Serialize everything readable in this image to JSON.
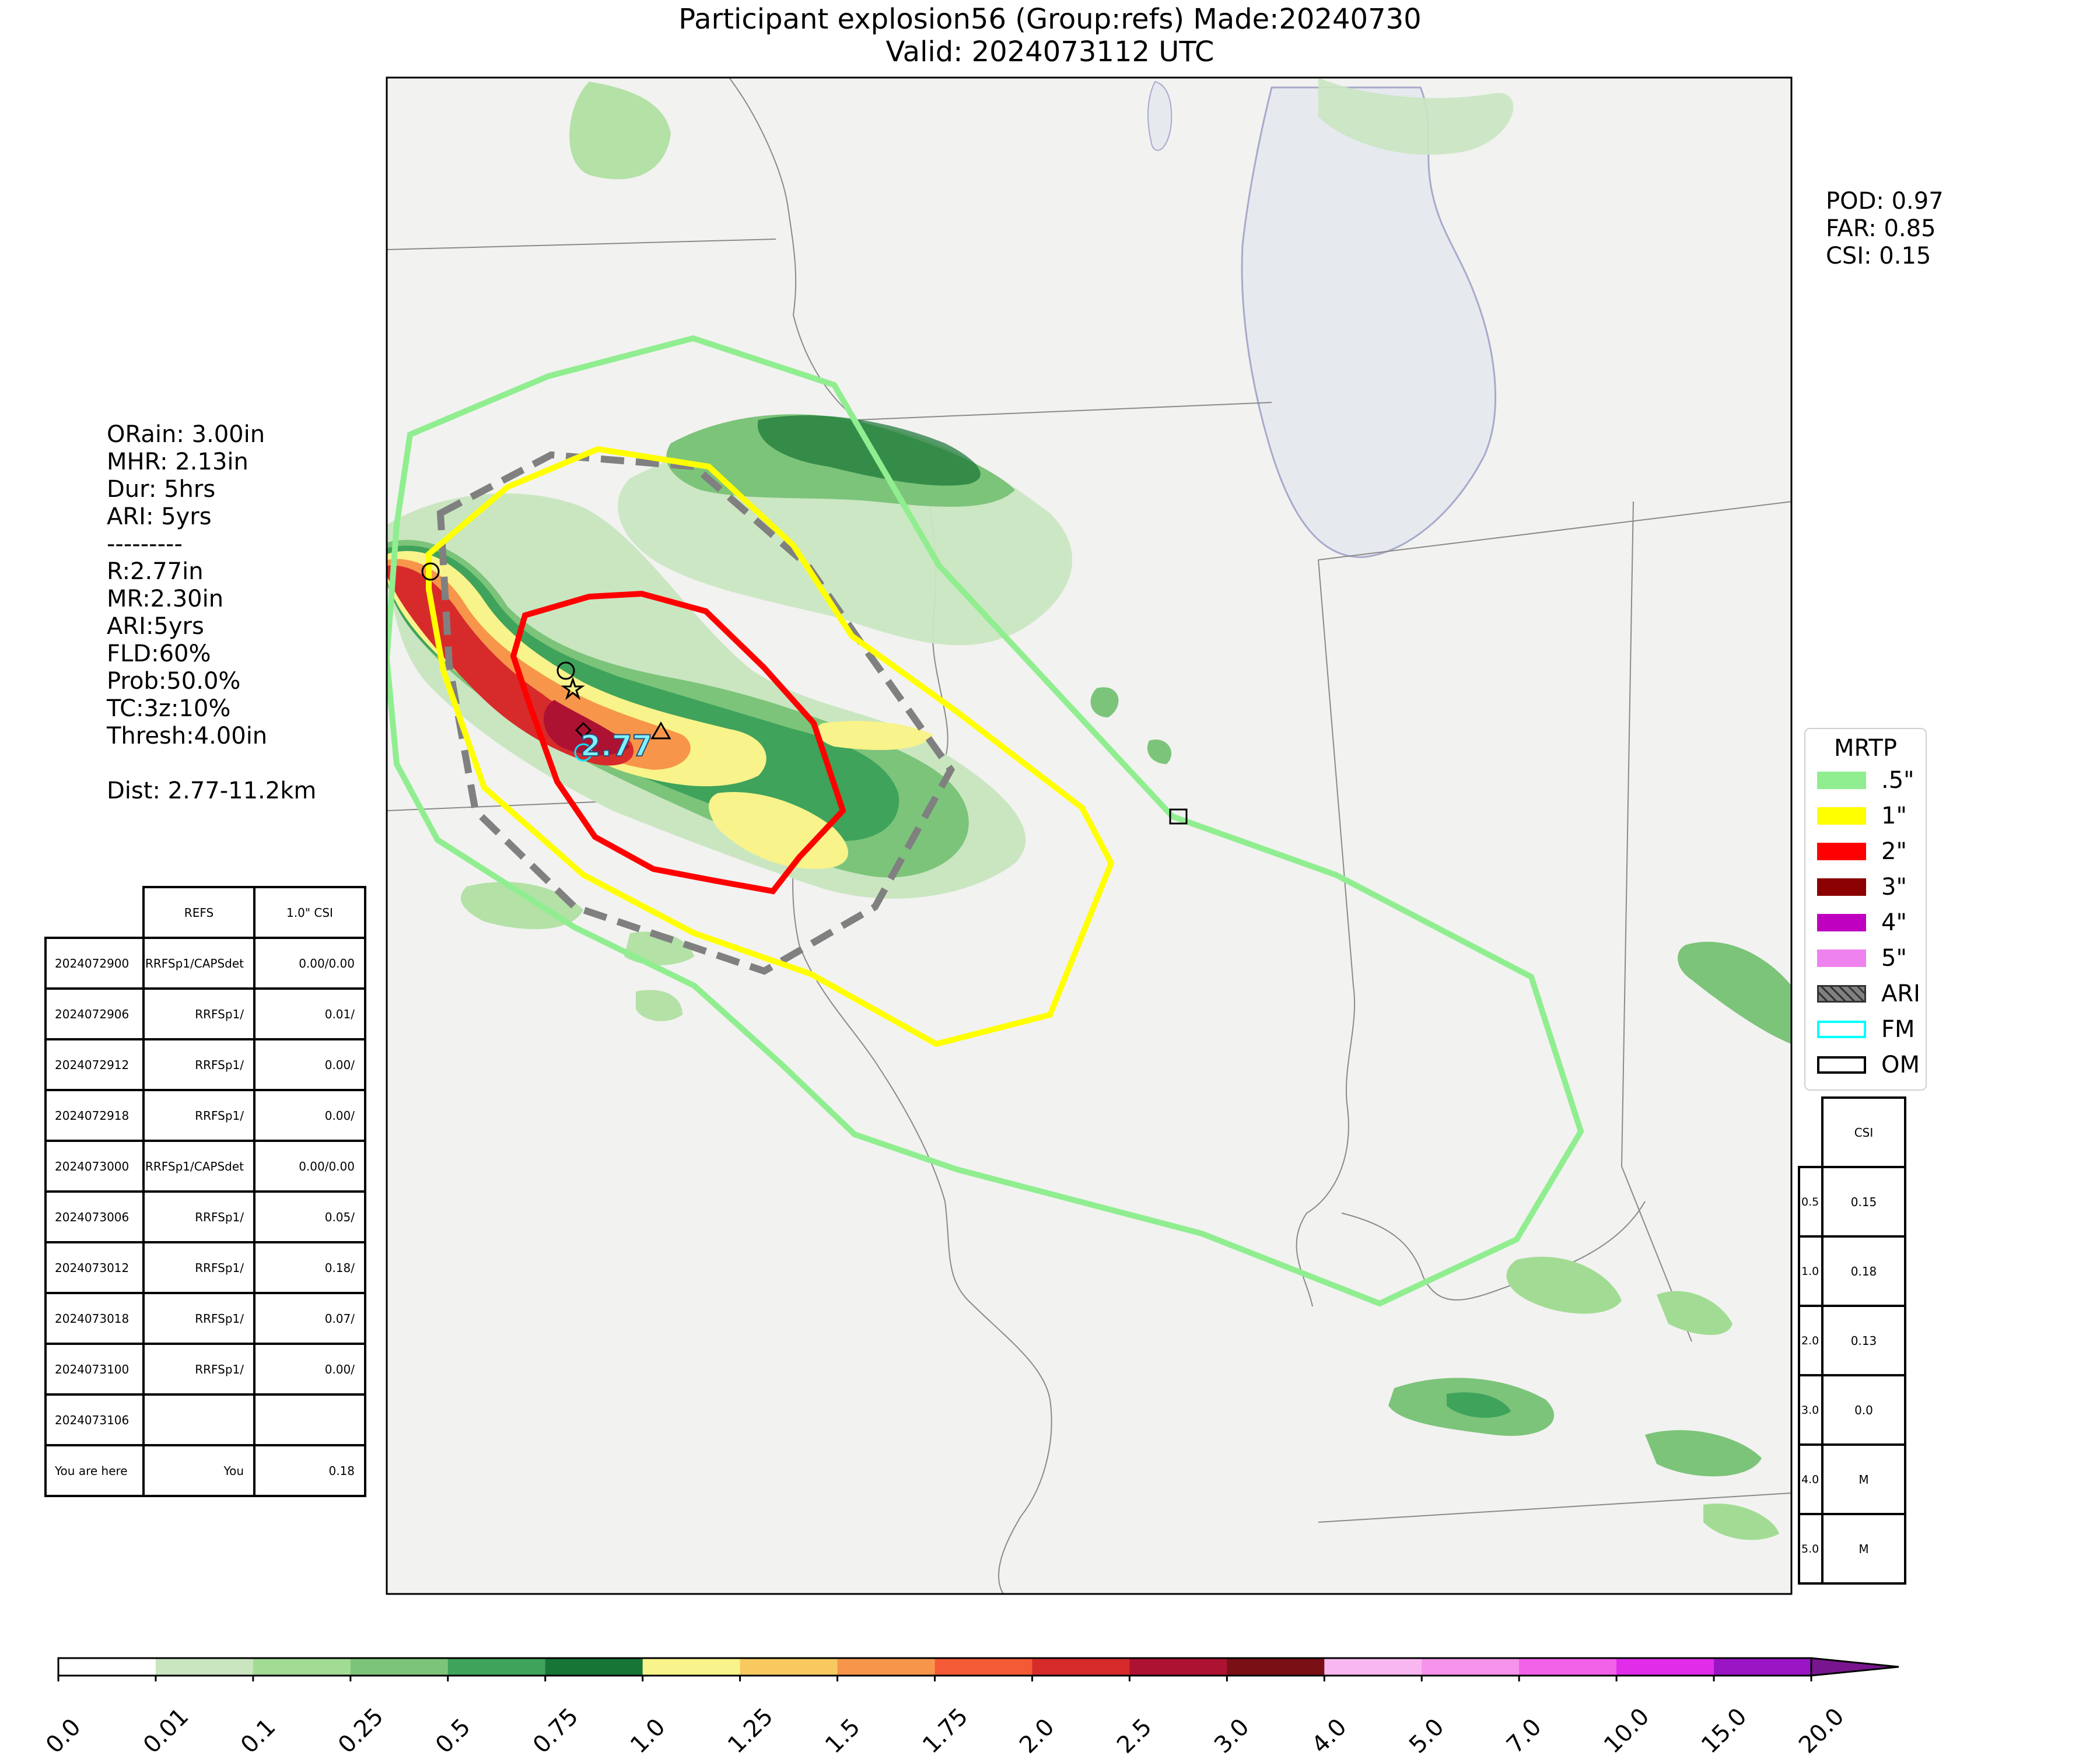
{
  "title": {
    "line1": "Participant explosion56 (Group:refs) Made:20240730",
    "line2": "Valid: 2024073112 UTC"
  },
  "scores": {
    "pod": "POD: 0.97",
    "far": "FAR: 0.85",
    "csi": "CSI: 0.15"
  },
  "info": [
    "ORain: 3.00in",
    "MHR: 2.13in",
    "Dur: 5hrs",
    "ARI: 5yrs",
    "---------",
    "R:2.77in",
    "MR:2.30in",
    "ARI:5yrs",
    "FLD:60%",
    "Prob:50.0%",
    "TC:3z:10%",
    "Thresh:4.00in",
    "",
    "Dist: 2.77-11.2km"
  ],
  "map_label": "2.77",
  "legend": {
    "title": "MRTP",
    "items": [
      {
        "label": ".5\"",
        "color": "#90ee90",
        "style": "line"
      },
      {
        "label": "1\"",
        "color": "#ffff00",
        "style": "line"
      },
      {
        "label": "2\"",
        "color": "#ff0000",
        "style": "line"
      },
      {
        "label": "3\"",
        "color": "#8b0000",
        "style": "line"
      },
      {
        "label": "4\"",
        "color": "#c000c0",
        "style": "line"
      },
      {
        "label": "5\"",
        "color": "#ee82ee",
        "style": "line"
      },
      {
        "label": "ARI",
        "color": "#808080",
        "style": "hatch"
      },
      {
        "label": "FM",
        "color": "#00ffff",
        "style": "outline"
      },
      {
        "label": "OM",
        "color": "#000000",
        "style": "outline"
      }
    ]
  },
  "runs_table": {
    "header": [
      "",
      "REFS",
      "1.0\" CSI"
    ],
    "rows": [
      [
        "2024072900",
        "RRFSp1/CAPSdet",
        "0.00/0.00"
      ],
      [
        "2024072906",
        "RRFSp1/",
        "0.01/"
      ],
      [
        "2024072912",
        "RRFSp1/",
        "0.00/"
      ],
      [
        "2024072918",
        "RRFSp1/",
        "0.00/"
      ],
      [
        "2024073000",
        "RRFSp1/CAPSdet",
        "0.00/0.00"
      ],
      [
        "2024073006",
        "RRFSp1/",
        "0.05/"
      ],
      [
        "2024073012",
        "RRFSp1/",
        "0.18/"
      ],
      [
        "2024073018",
        "RRFSp1/",
        "0.07/"
      ],
      [
        "2024073100",
        "RRFSp1/",
        "0.00/"
      ],
      [
        "2024073106",
        "",
        ""
      ],
      [
        "You are here",
        "You",
        "0.18"
      ]
    ]
  },
  "csi_table": {
    "header": [
      "",
      "CSI"
    ],
    "rows": [
      [
        "0.5",
        "0.15"
      ],
      [
        "1.0",
        "0.18"
      ],
      [
        "2.0",
        "0.13"
      ],
      [
        "3.0",
        "0.0"
      ],
      [
        "4.0",
        "M"
      ],
      [
        "5.0",
        "M"
      ]
    ]
  },
  "colorbar": {
    "labels": [
      "0.0",
      "0.01",
      "0.1",
      "0.25",
      "0.5",
      "0.75",
      "1.0",
      "1.25",
      "1.5",
      "1.75",
      "2.0",
      "2.5",
      "3.0",
      "4.0",
      "5.0",
      "7.0",
      "10.0",
      "15.0",
      "20.0"
    ],
    "colors": [
      "#ffffff",
      "#c9e6c1",
      "#a2dc94",
      "#7cc47a",
      "#3fa35b",
      "#177535",
      "#f8f38a",
      "#f7c95f",
      "#f7964b",
      "#f55a37",
      "#d72b2b",
      "#ae1232",
      "#7a1015",
      "#f8b8ef",
      "#f693ea",
      "#f262e8",
      "#e12ce9",
      "#9a15c4"
    ],
    "extend_color": "#7a1590"
  }
}
